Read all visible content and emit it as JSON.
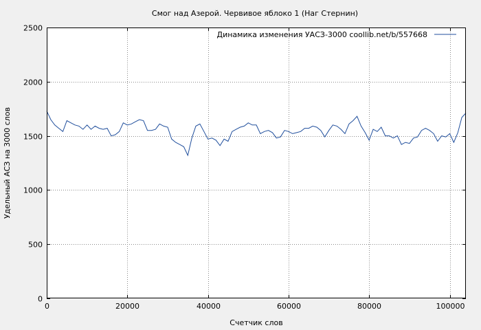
{
  "chart_data": {
    "type": "line",
    "title": "Смог над Азерой. Червивое яблоко 1 (Наг Стернин)",
    "xlabel": "Счетчик слов",
    "ylabel": "Удельный АСЗ на 3000 слов",
    "xlim": [
      0,
      104000
    ],
    "ylim": [
      0,
      2500
    ],
    "xticks": [
      0,
      20000,
      40000,
      60000,
      80000,
      100000
    ],
    "yticks": [
      0,
      500,
      1000,
      1500,
      2000,
      2500
    ],
    "grid": true,
    "legend_position": "top-right",
    "series": [
      {
        "name": "Динамика изменения УАСЗ-3000  coollib.net/b/557668",
        "color": "#1f4e9c",
        "x": [
          0,
          1000,
          2000,
          3000,
          4000,
          5000,
          6000,
          7000,
          8000,
          9000,
          10000,
          11000,
          12000,
          13000,
          14000,
          15000,
          16000,
          17000,
          18000,
          19000,
          20000,
          21000,
          22000,
          23000,
          24000,
          25000,
          26000,
          27000,
          28000,
          29000,
          30000,
          31000,
          32000,
          33000,
          34000,
          35000,
          36000,
          37000,
          38000,
          39000,
          40000,
          41000,
          42000,
          43000,
          44000,
          45000,
          46000,
          47000,
          48000,
          49000,
          50000,
          51000,
          52000,
          53000,
          54000,
          55000,
          56000,
          57000,
          58000,
          59000,
          60000,
          61000,
          62000,
          63000,
          64000,
          65000,
          66000,
          67000,
          68000,
          69000,
          70000,
          71000,
          72000,
          73000,
          74000,
          75000,
          76000,
          77000,
          78000,
          79000,
          80000,
          81000,
          82000,
          83000,
          84000,
          85000,
          86000,
          87000,
          88000,
          89000,
          90000,
          91000,
          92000,
          93000,
          94000,
          95000,
          96000,
          97000,
          98000,
          99000,
          100000,
          101000,
          102000,
          103000,
          104000
        ],
        "y": [
          1730,
          1650,
          1600,
          1570,
          1540,
          1640,
          1620,
          1600,
          1590,
          1560,
          1600,
          1560,
          1590,
          1570,
          1560,
          1570,
          1500,
          1510,
          1540,
          1620,
          1600,
          1610,
          1630,
          1650,
          1640,
          1550,
          1550,
          1560,
          1610,
          1590,
          1580,
          1470,
          1440,
          1420,
          1400,
          1320,
          1480,
          1590,
          1610,
          1540,
          1470,
          1480,
          1460,
          1410,
          1470,
          1450,
          1540,
          1560,
          1580,
          1590,
          1620,
          1600,
          1600,
          1520,
          1540,
          1550,
          1530,
          1480,
          1490,
          1550,
          1540,
          1520,
          1530,
          1540,
          1570,
          1570,
          1590,
          1580,
          1550,
          1490,
          1550,
          1600,
          1590,
          1560,
          1520,
          1610,
          1640,
          1680,
          1590,
          1530,
          1460,
          1560,
          1540,
          1580,
          1500,
          1500,
          1480,
          1500,
          1420,
          1440,
          1430,
          1480,
          1490,
          1550,
          1570,
          1550,
          1520,
          1450,
          1500,
          1490,
          1520,
          1440,
          1530,
          1670,
          1710
        ]
      }
    ]
  }
}
